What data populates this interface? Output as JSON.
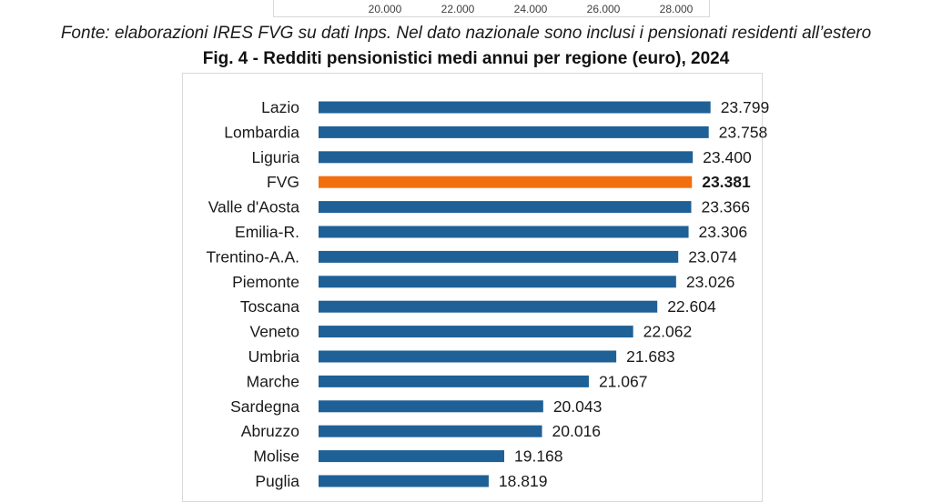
{
  "previous_chart": {
    "ticks": [
      "20.000",
      "22.000",
      "24.000",
      "26.000",
      "28.000"
    ]
  },
  "source_note": "Fonte: elaborazioni IRES FVG su dati Inps. Nel dato nazionale sono inclusi i pensionati residenti all’estero",
  "chart_data": {
    "type": "bar",
    "orientation": "horizontal",
    "title": "Fig. 4 - Redditi pensionistici medi annui per regione (euro), 2024",
    "xlabel": "",
    "ylabel": "",
    "categories": [
      "Lazio",
      "Lombardia",
      "Liguria",
      "FVG",
      "Valle d'Aosta",
      "Emilia-R.",
      "Trentino-A.A.",
      "Piemonte",
      "Toscana",
      "Veneto",
      "Umbria",
      "Marche",
      "Sardegna",
      "Abruzzo",
      "Molise",
      "Puglia"
    ],
    "values": [
      23799,
      23758,
      23400,
      23381,
      23366,
      23306,
      23074,
      23026,
      22604,
      22062,
      21683,
      21067,
      20043,
      20016,
      19168,
      18819
    ],
    "value_labels": [
      "23.799",
      "23.758",
      "23.400",
      "23.381",
      "23.366",
      "23.306",
      "23.074",
      "23.026",
      "22.604",
      "22.062",
      "21.683",
      "21.067",
      "20.043",
      "20.016",
      "19.168",
      "18.819"
    ],
    "highlight": "FVG",
    "xlim": [
      15000,
      24500
    ],
    "grid": false,
    "legend": "none",
    "colors": {
      "bar": "#1f6196",
      "highlight": "#f26f0f"
    }
  }
}
